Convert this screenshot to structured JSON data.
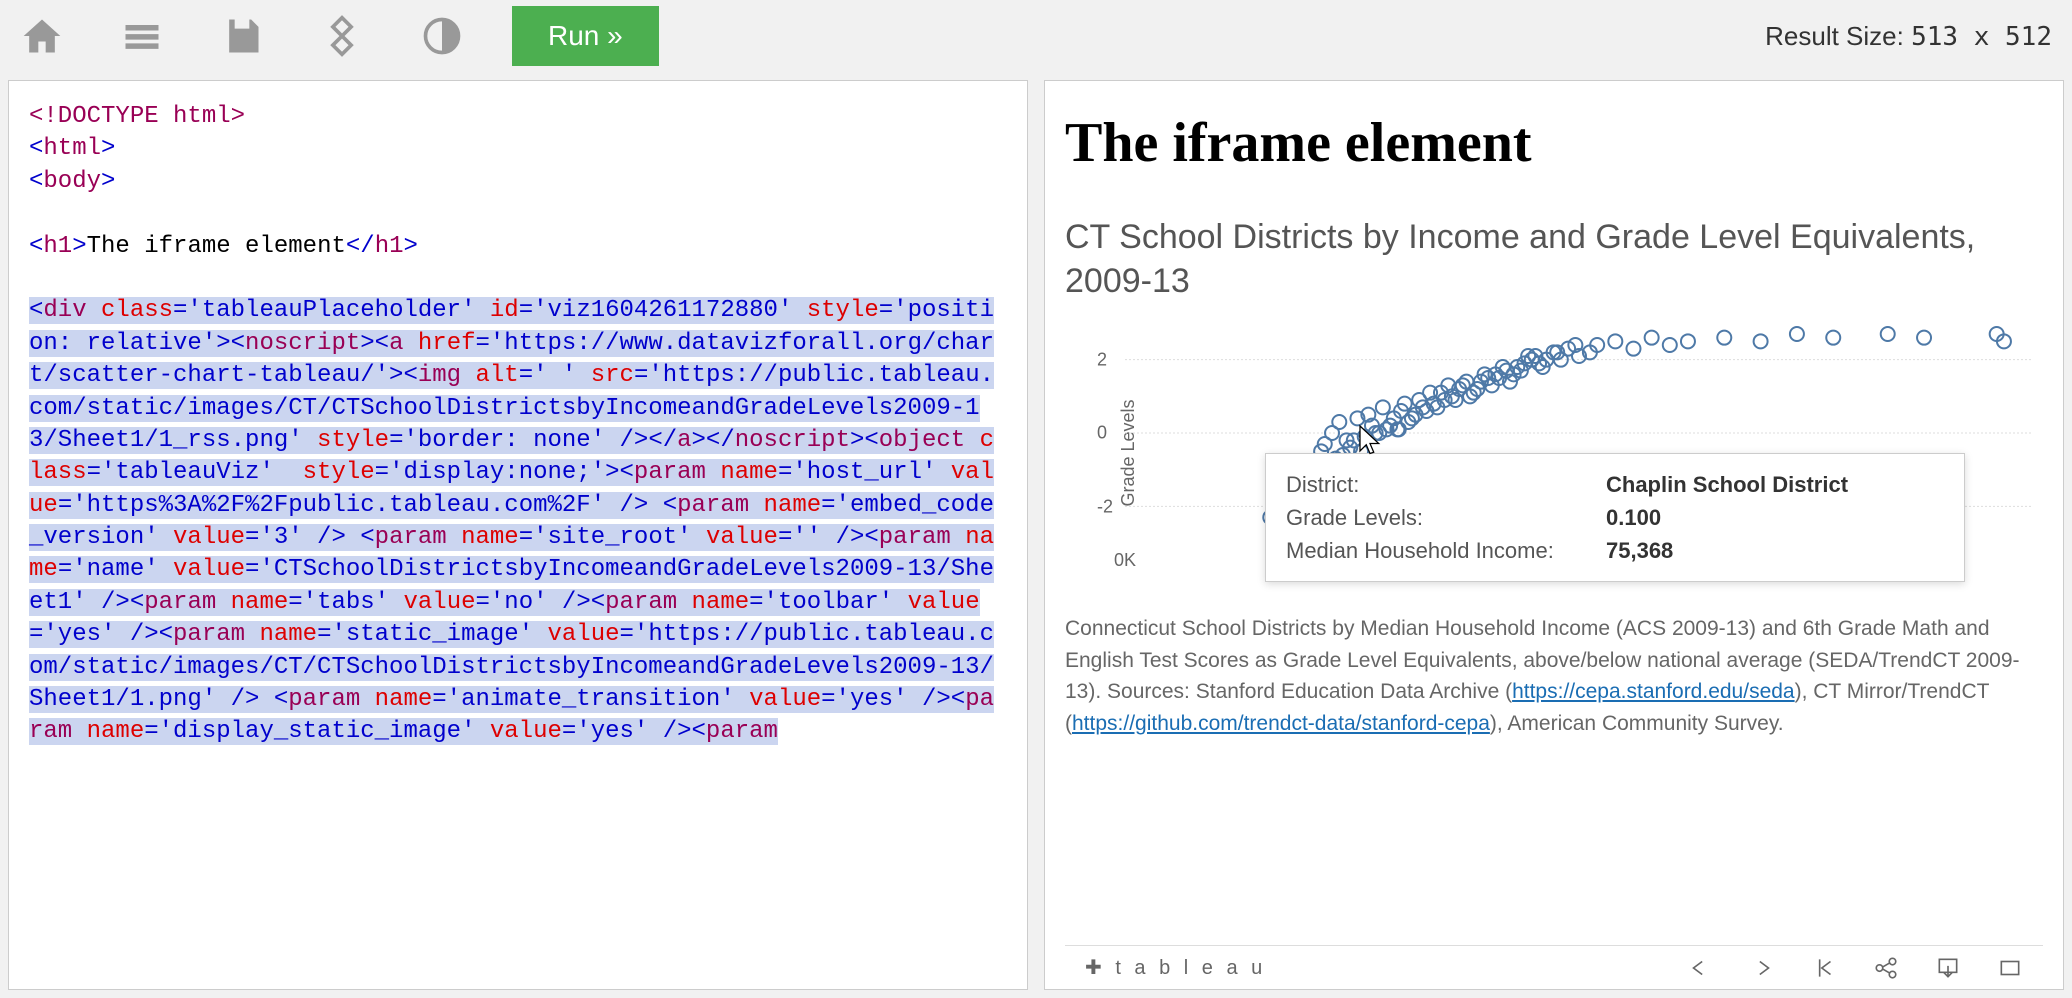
{
  "toolbar": {
    "run_label": "Run »",
    "result_size_label": "Result Size:",
    "result_w": "513",
    "result_x": "x",
    "result_h": "512"
  },
  "code": {
    "doctype": "<!DOCTYPE html>",
    "html_open": "html",
    "body_open": "body",
    "h1_tag": "h1",
    "h1_text": "The iframe element",
    "segments": [
      {
        "t": "<",
        "c": "blue"
      },
      {
        "t": "div ",
        "c": "brown"
      },
      {
        "t": "class",
        "c": "red"
      },
      {
        "t": "='tableauPlaceholder' ",
        "c": "blue"
      },
      {
        "t": "id",
        "c": "red"
      },
      {
        "t": "='viz1604261172880' ",
        "c": "blue"
      },
      {
        "t": "style",
        "c": "red"
      },
      {
        "t": "='position: relative'>",
        "c": "blue"
      },
      {
        "t": "<",
        "c": "blue"
      },
      {
        "t": "noscript",
        "c": "brown"
      },
      {
        "t": "><",
        "c": "blue"
      },
      {
        "t": "a ",
        "c": "brown"
      },
      {
        "t": "href",
        "c": "red"
      },
      {
        "t": "='https:&#47;&#47;www.datavizforall.org&#47;chart&#47;scatter-chart-tableau&#47;'>",
        "c": "blue"
      },
      {
        "t": "<",
        "c": "blue"
      },
      {
        "t": "img ",
        "c": "brown"
      },
      {
        "t": "alt",
        "c": "red"
      },
      {
        "t": "=' ' ",
        "c": "blue"
      },
      {
        "t": "src",
        "c": "red"
      },
      {
        "t": "='https:&#47;&#47;public.tableau.com&#47;static&#47;images&#47;CT&#47;CTSchoolDistrictsbyIncomeandGradeLevels2009-13&#47;Sheet1&#47;1_rss.png' ",
        "c": "blue"
      },
      {
        "t": "style",
        "c": "red"
      },
      {
        "t": "='border: none' />",
        "c": "blue"
      },
      {
        "t": "</",
        "c": "blue"
      },
      {
        "t": "a",
        "c": "brown"
      },
      {
        "t": "></",
        "c": "blue"
      },
      {
        "t": "noscript",
        "c": "brown"
      },
      {
        "t": "><",
        "c": "blue"
      },
      {
        "t": "object ",
        "c": "brown"
      },
      {
        "t": "class",
        "c": "red"
      },
      {
        "t": "='tableauViz'  ",
        "c": "blue"
      },
      {
        "t": "style",
        "c": "red"
      },
      {
        "t": "='display:none;'>",
        "c": "blue"
      },
      {
        "t": "<",
        "c": "blue"
      },
      {
        "t": "param ",
        "c": "brown"
      },
      {
        "t": "name",
        "c": "red"
      },
      {
        "t": "='host_url' ",
        "c": "blue"
      },
      {
        "t": "value",
        "c": "red"
      },
      {
        "t": "='https%3A%2F%2Fpublic.tableau.com%2F' /> ",
        "c": "blue"
      },
      {
        "t": "<",
        "c": "blue"
      },
      {
        "t": "param ",
        "c": "brown"
      },
      {
        "t": "name",
        "c": "red"
      },
      {
        "t": "='embed_code_version' ",
        "c": "blue"
      },
      {
        "t": "value",
        "c": "red"
      },
      {
        "t": "='3' /> ",
        "c": "blue"
      },
      {
        "t": "<",
        "c": "blue"
      },
      {
        "t": "param ",
        "c": "brown"
      },
      {
        "t": "name",
        "c": "red"
      },
      {
        "t": "='site_root' ",
        "c": "blue"
      },
      {
        "t": "value",
        "c": "red"
      },
      {
        "t": "='' />",
        "c": "blue"
      },
      {
        "t": "<",
        "c": "blue"
      },
      {
        "t": "param ",
        "c": "brown"
      },
      {
        "t": "name",
        "c": "red"
      },
      {
        "t": "='name' ",
        "c": "blue"
      },
      {
        "t": "value",
        "c": "red"
      },
      {
        "t": "='CTSchoolDistrictsbyIncomeandGradeLevels2009-13&#47;Sheet1' />",
        "c": "blue"
      },
      {
        "t": "<",
        "c": "blue"
      },
      {
        "t": "param ",
        "c": "brown"
      },
      {
        "t": "name",
        "c": "red"
      },
      {
        "t": "='tabs' ",
        "c": "blue"
      },
      {
        "t": "value",
        "c": "red"
      },
      {
        "t": "='no' />",
        "c": "blue"
      },
      {
        "t": "<",
        "c": "blue"
      },
      {
        "t": "param ",
        "c": "brown"
      },
      {
        "t": "name",
        "c": "red"
      },
      {
        "t": "='toolbar' ",
        "c": "blue"
      },
      {
        "t": "value",
        "c": "red"
      },
      {
        "t": "='yes' />",
        "c": "blue"
      },
      {
        "t": "<",
        "c": "blue"
      },
      {
        "t": "param ",
        "c": "brown"
      },
      {
        "t": "name",
        "c": "red"
      },
      {
        "t": "='static_image' ",
        "c": "blue"
      },
      {
        "t": "value",
        "c": "red"
      },
      {
        "t": "='https:&#47;&#47;public.tableau.com&#47;static&#47;images&#47;CT&#47;CTSchoolDistrictsbyIncomeandGradeLevels2009-13&#47;Sheet1&#47;1.png' /> ",
        "c": "blue"
      },
      {
        "t": "<",
        "c": "blue"
      },
      {
        "t": "param ",
        "c": "brown"
      },
      {
        "t": "name",
        "c": "red"
      },
      {
        "t": "='animate_transition' ",
        "c": "blue"
      },
      {
        "t": "value",
        "c": "red"
      },
      {
        "t": "='yes' />",
        "c": "blue"
      },
      {
        "t": "<",
        "c": "blue"
      },
      {
        "t": "param ",
        "c": "brown"
      },
      {
        "t": "name",
        "c": "red"
      },
      {
        "t": "='display_static_image' ",
        "c": "blue"
      },
      {
        "t": "value",
        "c": "red"
      },
      {
        "t": "='yes' />",
        "c": "blue"
      },
      {
        "t": "<",
        "c": "blue"
      },
      {
        "t": "param",
        "c": "brown"
      }
    ]
  },
  "result": {
    "h1": "The iframe element",
    "chart_title": "CT School Districts by Income and Grade Level Equivalents, 2009-13",
    "ylabel": "Grade Levels",
    "xlabel_cut": "Median Household Income",
    "yticks": [
      {
        "v": -2,
        "label": "-2"
      },
      {
        "v": 0,
        "label": "0"
      },
      {
        "v": 2,
        "label": "2"
      }
    ],
    "xticks": [
      {
        "v": 0,
        "label": "0K"
      }
    ],
    "scatter": {
      "type": "scatter",
      "xlim": [
        0,
        250000
      ],
      "ylim": [
        -3,
        3
      ],
      "marker_color": "#4E79A7",
      "marker_stroke": "#4E79A7",
      "marker_fill_opacity": 0,
      "marker_radius": 7,
      "grid_color": "#dddddd",
      "background": "#ffffff",
      "points": [
        [
          40000,
          -2.3
        ],
        [
          42000,
          -2.1
        ],
        [
          45000,
          -1.8
        ],
        [
          43000,
          -1.6
        ],
        [
          50000,
          -1.5
        ],
        [
          48000,
          -1.2
        ],
        [
          52000,
          -1.0
        ],
        [
          55000,
          -1.3
        ],
        [
          46000,
          -0.9
        ],
        [
          58000,
          -0.7
        ],
        [
          60000,
          -0.6
        ],
        [
          62000,
          -0.4
        ],
        [
          65000,
          -0.5
        ],
        [
          63000,
          -0.2
        ],
        [
          66000,
          -0.1
        ],
        [
          70000,
          0.0
        ],
        [
          68000,
          0.2
        ],
        [
          72000,
          0.1
        ],
        [
          75000,
          0.1
        ],
        [
          74000,
          0.4
        ],
        [
          78000,
          0.3
        ],
        [
          80000,
          0.5
        ],
        [
          76000,
          0.6
        ],
        [
          82000,
          0.7
        ],
        [
          85000,
          0.8
        ],
        [
          83000,
          0.6
        ],
        [
          88000,
          0.9
        ],
        [
          90000,
          1.0
        ],
        [
          87000,
          1.1
        ],
        [
          92000,
          1.2
        ],
        [
          95000,
          1.0
        ],
        [
          93000,
          1.3
        ],
        [
          98000,
          1.4
        ],
        [
          100000,
          1.5
        ],
        [
          97000,
          1.2
        ],
        [
          102000,
          1.6
        ],
        [
          105000,
          1.7
        ],
        [
          103000,
          1.5
        ],
        [
          108000,
          1.8
        ],
        [
          110000,
          1.9
        ],
        [
          107000,
          1.6
        ],
        [
          112000,
          2.0
        ],
        [
          115000,
          1.8
        ],
        [
          113000,
          2.1
        ],
        [
          118000,
          2.2
        ],
        [
          120000,
          2.0
        ],
        [
          122000,
          2.3
        ],
        [
          125000,
          2.1
        ],
        [
          130000,
          2.4
        ],
        [
          128000,
          2.2
        ],
        [
          135000,
          2.5
        ],
        [
          140000,
          2.3
        ],
        [
          145000,
          2.6
        ],
        [
          150000,
          2.4
        ],
        [
          155000,
          2.5
        ],
        [
          165000,
          2.6
        ],
        [
          175000,
          2.5
        ],
        [
          185000,
          2.7
        ],
        [
          195000,
          2.6
        ],
        [
          210000,
          2.7
        ],
        [
          220000,
          2.6
        ],
        [
          240000,
          2.7
        ],
        [
          242000,
          2.5
        ],
        [
          55000,
          -0.3
        ],
        [
          57000,
          0.0
        ],
        [
          59000,
          0.3
        ],
        [
          61000,
          -0.2
        ],
        [
          64000,
          0.4
        ],
        [
          67000,
          0.5
        ],
        [
          69000,
          0.0
        ],
        [
          71000,
          0.7
        ],
        [
          73000,
          0.2
        ],
        [
          77000,
          0.8
        ],
        [
          79000,
          0.4
        ],
        [
          81000,
          0.9
        ],
        [
          84000,
          1.1
        ],
        [
          86000,
          0.7
        ],
        [
          89000,
          1.3
        ],
        [
          91000,
          0.9
        ],
        [
          94000,
          1.4
        ],
        [
          96000,
          1.1
        ],
        [
          99000,
          1.6
        ],
        [
          101000,
          1.3
        ],
        [
          104000,
          1.8
        ],
        [
          106000,
          1.4
        ],
        [
          109000,
          1.7
        ],
        [
          111000,
          2.1
        ],
        [
          114000,
          1.9
        ],
        [
          116000,
          2.0
        ],
        [
          119000,
          2.2
        ],
        [
          124000,
          2.4
        ],
        [
          44000,
          -2.0
        ],
        [
          47000,
          -1.4
        ],
        [
          49000,
          -1.7
        ],
        [
          51000,
          -0.8
        ],
        [
          53000,
          -1.1
        ],
        [
          54000,
          -0.5
        ],
        [
          56000,
          -0.9
        ],
        [
          75368,
          0.1
        ]
      ]
    },
    "tooltip": {
      "rows": [
        {
          "label": "District:",
          "value": "Chaplin School District"
        },
        {
          "label": "Grade Levels:",
          "value": "0.100"
        },
        {
          "label": "Median Household Income:",
          "value": "75,368"
        }
      ]
    },
    "caption_pre": "Connecticut School Districts by Median Household Income (ACS 2009-13) and 6th Grade Math and English Test Scores as Grade Level Equivalents, above/below national average (SEDA/TrendCT 2009-13). Sources: Stanford Education Data Archive (",
    "link1": "https://cepa.stanford.edu/seda",
    "caption_mid": "), CT Mirror/TrendCT (",
    "link2": "https://github.com/trendct-data/stanford-cepa",
    "caption_post": "), American Community Survey.",
    "tableau_logo": "✚ t a b l e a u"
  }
}
